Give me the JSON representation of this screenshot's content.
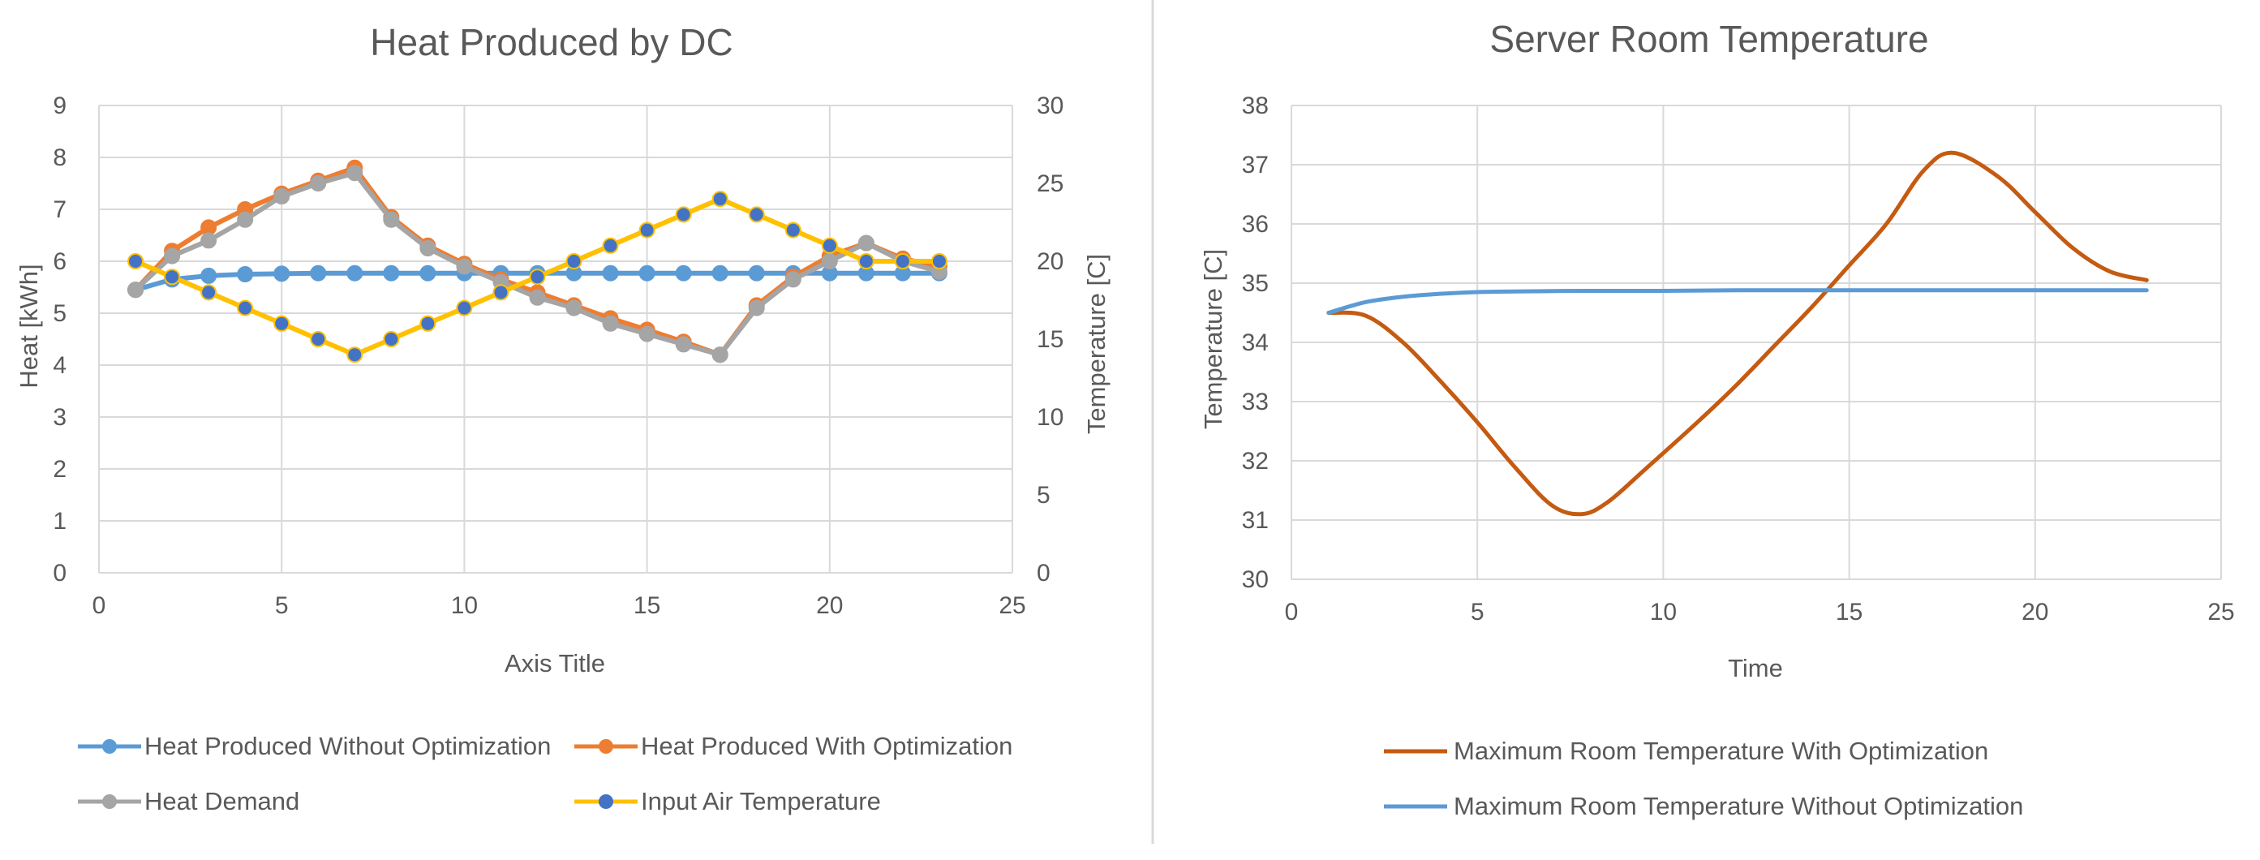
{
  "chart_data": [
    {
      "type": "line",
      "title": "Heat Produced by DC",
      "xlabel": "Axis Title",
      "ylabel": "Heat [kWh]",
      "y2label": "Temperature  [C]",
      "xlim": [
        0,
        25
      ],
      "ylim": [
        0,
        9
      ],
      "y2lim": [
        0,
        30
      ],
      "xticks": [
        "0",
        "5",
        "10",
        "15",
        "20",
        "25"
      ],
      "yticks": [
        "0",
        "1",
        "2",
        "3",
        "4",
        "5",
        "6",
        "7",
        "8",
        "9"
      ],
      "y2ticks": [
        "0",
        "5",
        "10",
        "15",
        "20",
        "25",
        "30"
      ],
      "grid": true,
      "legend_position": "bottom",
      "x": [
        1,
        2,
        3,
        4,
        5,
        6,
        7,
        8,
        9,
        10,
        11,
        12,
        13,
        14,
        15,
        16,
        17,
        18,
        19,
        20,
        21,
        22,
        23
      ],
      "series": [
        {
          "name": "Heat Produced Without Optimization",
          "axis": "left",
          "color": "#5b9bd5",
          "markers": true,
          "values": [
            5.45,
            5.65,
            5.72,
            5.75,
            5.76,
            5.77,
            5.77,
            5.77,
            5.77,
            5.77,
            5.77,
            5.77,
            5.77,
            5.77,
            5.77,
            5.77,
            5.77,
            5.77,
            5.77,
            5.77,
            5.77,
            5.77,
            5.77
          ]
        },
        {
          "name": "Heat Produced With Optimization",
          "axis": "left",
          "color": "#ed7d31",
          "markers": true,
          "values": [
            5.45,
            6.2,
            6.65,
            7.0,
            7.3,
            7.55,
            7.8,
            6.85,
            6.3,
            5.95,
            5.65,
            5.4,
            5.15,
            4.9,
            4.68,
            4.45,
            4.2,
            5.15,
            5.7,
            6.1,
            6.35,
            6.05,
            5.9
          ]
        },
        {
          "name": "Heat Demand",
          "axis": "left",
          "color": "#a5a5a5",
          "markers": true,
          "values": [
            5.45,
            6.1,
            6.4,
            6.8,
            7.25,
            7.5,
            7.7,
            6.8,
            6.25,
            5.9,
            5.6,
            5.3,
            5.1,
            4.8,
            4.6,
            4.4,
            4.2,
            5.1,
            5.65,
            6.0,
            6.35,
            6.0,
            5.8
          ]
        },
        {
          "name": "Input Air Temperature",
          "axis": "right",
          "color": "#ffc000",
          "markers": true,
          "marker_color": "#4472c4",
          "values": [
            20,
            19,
            18,
            17,
            16,
            15,
            14,
            15,
            16,
            17,
            18,
            19,
            20,
            21,
            22,
            23,
            24,
            23,
            22,
            21,
            20,
            20,
            20
          ]
        }
      ]
    },
    {
      "type": "line",
      "title": "Server Room Temperature",
      "xlabel": "Time",
      "ylabel": "Temperature  [C]",
      "xlim": [
        0,
        25
      ],
      "ylim": [
        30,
        38
      ],
      "xticks": [
        "0",
        "5",
        "10",
        "15",
        "20",
        "25"
      ],
      "yticks": [
        "30",
        "31",
        "32",
        "33",
        "34",
        "35",
        "36",
        "37",
        "38"
      ],
      "grid": true,
      "legend_position": "bottom",
      "series": [
        {
          "name": "Maximum Room Temperature With Optimization",
          "color": "#c55a11",
          "markers": false,
          "x": [
            1,
            2,
            3,
            4,
            5,
            6,
            7,
            7.8,
            8.5,
            9.5,
            11,
            12,
            13,
            14,
            15,
            16,
            17,
            17.8,
            19,
            20,
            21,
            22,
            23
          ],
          "values": [
            34.5,
            34.45,
            34.0,
            33.35,
            32.65,
            31.9,
            31.25,
            31.1,
            31.3,
            31.85,
            32.7,
            33.3,
            33.95,
            34.6,
            35.3,
            36.0,
            36.9,
            37.2,
            36.8,
            36.2,
            35.6,
            35.2,
            35.05
          ]
        },
        {
          "name": "Maximum Room Temperature Without Optimization",
          "color": "#5b9bd5",
          "markers": false,
          "x": [
            1,
            2,
            3,
            4,
            5,
            6,
            8,
            10,
            12,
            15,
            18,
            20,
            23
          ],
          "values": [
            34.5,
            34.68,
            34.77,
            34.82,
            34.85,
            34.86,
            34.87,
            34.87,
            34.88,
            34.88,
            34.88,
            34.88,
            34.88
          ]
        }
      ]
    }
  ]
}
